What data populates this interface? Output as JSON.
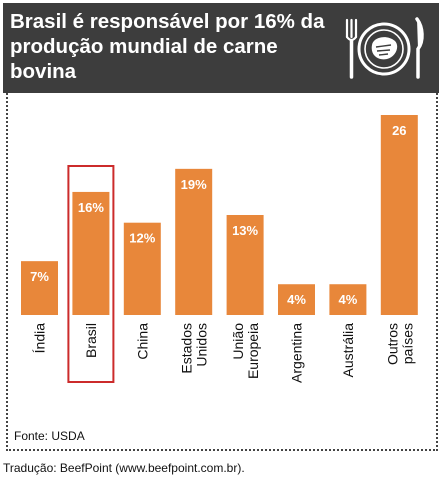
{
  "title": "Brasil é responsável por 16% da produção mundial de carne bovina",
  "source": "Fonte: USDA",
  "credit": "Tradução: BeefPoint (www.beefpoint.com.br).",
  "colors": {
    "bar": "#e8873a",
    "header": "#3d3d3d",
    "highlight": "#cc2b2b"
  },
  "icons": [
    "fork-icon",
    "plate-steak-icon",
    "knife-icon"
  ],
  "chart_data": {
    "type": "bar",
    "title": "Brasil é responsável por 16% da produção mundial de carne bovina",
    "xlabel": "",
    "ylabel": "",
    "categories": [
      [
        "Índia"
      ],
      [
        "Brasil"
      ],
      [
        "China"
      ],
      [
        "Estados",
        "Unidos"
      ],
      [
        "União",
        "Europeia"
      ],
      [
        "Argentina"
      ],
      [
        "Austrália"
      ],
      [
        "Outros",
        "países"
      ]
    ],
    "values": [
      7,
      16,
      12,
      19,
      13,
      4,
      4,
      26
    ],
    "labels": [
      "7%",
      "16%",
      "12%",
      "19%",
      "13%",
      "4%",
      "4%",
      "26"
    ],
    "highlight": "Brasil",
    "ylim": [
      0,
      26
    ],
    "grid": false,
    "legend": "none"
  }
}
